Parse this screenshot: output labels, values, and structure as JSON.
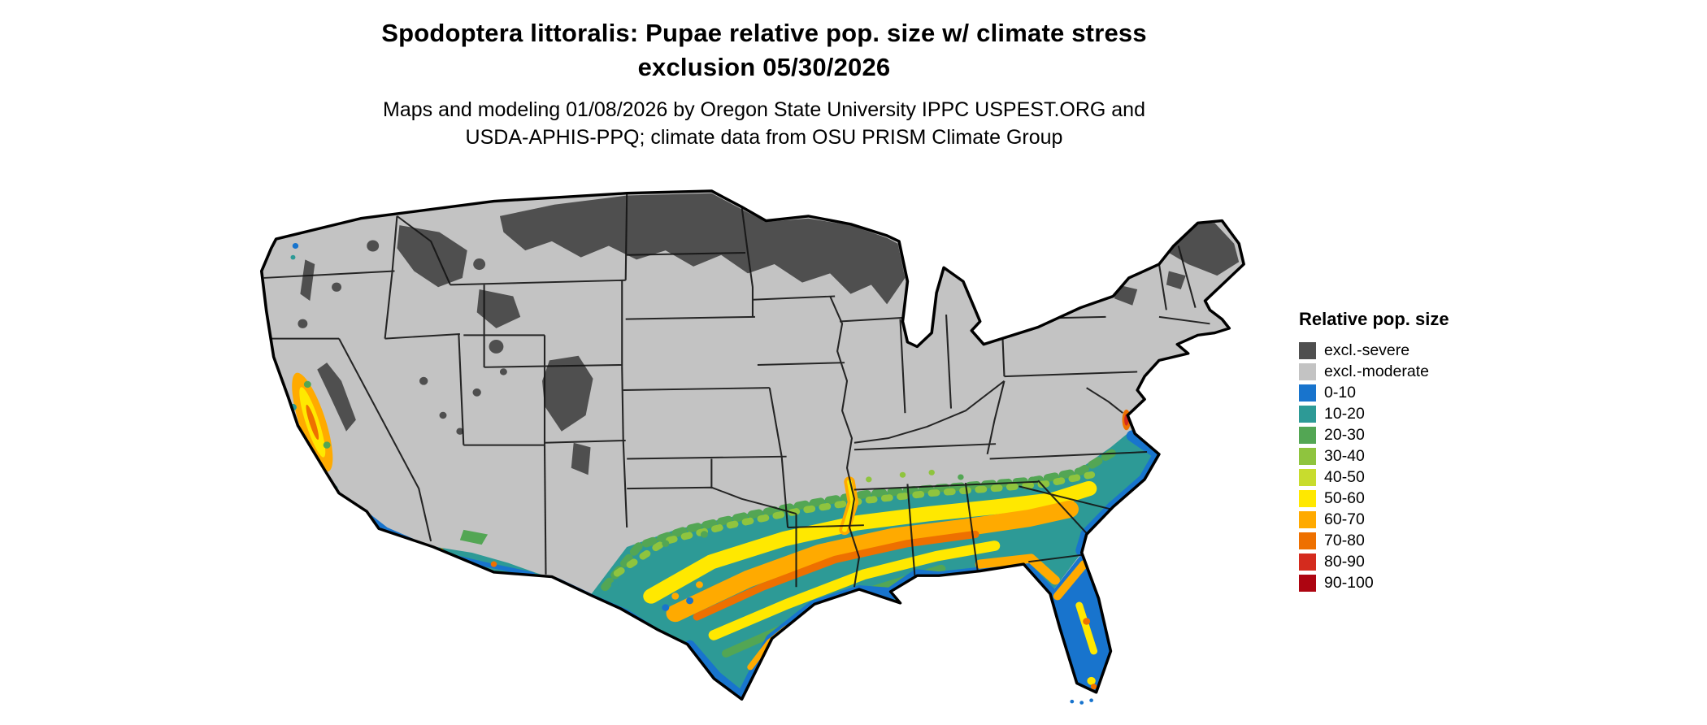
{
  "header": {
    "title_line1": "Spodoptera littoralis: Pupae relative pop. size w/ climate stress",
    "title_line2": "exclusion 05/30/2026",
    "subtitle_line1": "Maps and modeling 01/08/2026 by Oregon State University IPPC USPEST.ORG and",
    "subtitle_line2": "USDA-APHIS-PPQ; climate data from OSU PRISM Climate Group"
  },
  "legend": {
    "title": "Relative pop. size",
    "items": [
      {
        "label": "excl.-severe",
        "color": "#4f4f4f"
      },
      {
        "label": "excl.-moderate",
        "color": "#c3c3c3"
      },
      {
        "label": "0-10",
        "color": "#1874cd"
      },
      {
        "label": "10-20",
        "color": "#2d9a96"
      },
      {
        "label": "20-30",
        "color": "#53a654"
      },
      {
        "label": "30-40",
        "color": "#8fc43e"
      },
      {
        "label": "40-50",
        "color": "#c8dc2e"
      },
      {
        "label": "50-60",
        "color": "#ffe800"
      },
      {
        "label": "60-70",
        "color": "#ffaa00"
      },
      {
        "label": "70-80",
        "color": "#ee7000"
      },
      {
        "label": "80-90",
        "color": "#d42b1e"
      },
      {
        "label": "90-100",
        "color": "#ad0511"
      }
    ]
  }
}
